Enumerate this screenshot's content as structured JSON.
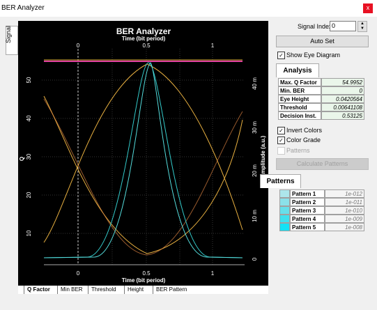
{
  "window": {
    "title": "BER Analyzer",
    "close": "x"
  },
  "side_tab": "Signal",
  "plot": {
    "title": "BER Analyzer",
    "top_axis_label": "Time (bit period)",
    "top_ticks": [
      "0",
      "0.5",
      "1"
    ],
    "left_axis_label": "Q",
    "left_ticks": [
      "50",
      "40",
      "30",
      "20",
      "10"
    ],
    "right_axis_label": "Amplitude (a.u.)",
    "right_ticks": [
      "40 m",
      "30 m",
      "20 m",
      "10 m",
      "0"
    ],
    "bottom_ticks": [
      "0",
      "0.5",
      "1"
    ],
    "bottom_axis_label": "Time (bit period)"
  },
  "plot_tabs": [
    "Q Factor",
    "Min BER",
    "Threshold",
    "Height",
    "BER Pattern"
  ],
  "controls": {
    "signal_index_label": "Signal Index",
    "signal_index": "0",
    "auto_set": "Auto Set",
    "show_eye": "Show Eye Diagram",
    "analysis_tab": "Analysis",
    "analysis": [
      [
        "Max. Q Factor",
        "54.9952"
      ],
      [
        "Min. BER",
        "0"
      ],
      [
        "Eye Height",
        "0.0420564"
      ],
      [
        "Threshold",
        "0.00641108"
      ],
      [
        "Decision Inst.",
        "0.53125"
      ]
    ],
    "invert_colors": "Invert Colors",
    "color_grade": "Color Grade",
    "patterns_check": "Patterns",
    "calculate": "Calculate Patterns",
    "patterns_tab": "Patterns",
    "patterns": [
      [
        "Pattern 1",
        "1e-012"
      ],
      [
        "Pattern 2",
        "1e-011"
      ],
      [
        "Pattern 3",
        "1e-010"
      ],
      [
        "Pattern 4",
        "1e-009"
      ],
      [
        "Pattern 5",
        "1e-008"
      ]
    ]
  }
}
